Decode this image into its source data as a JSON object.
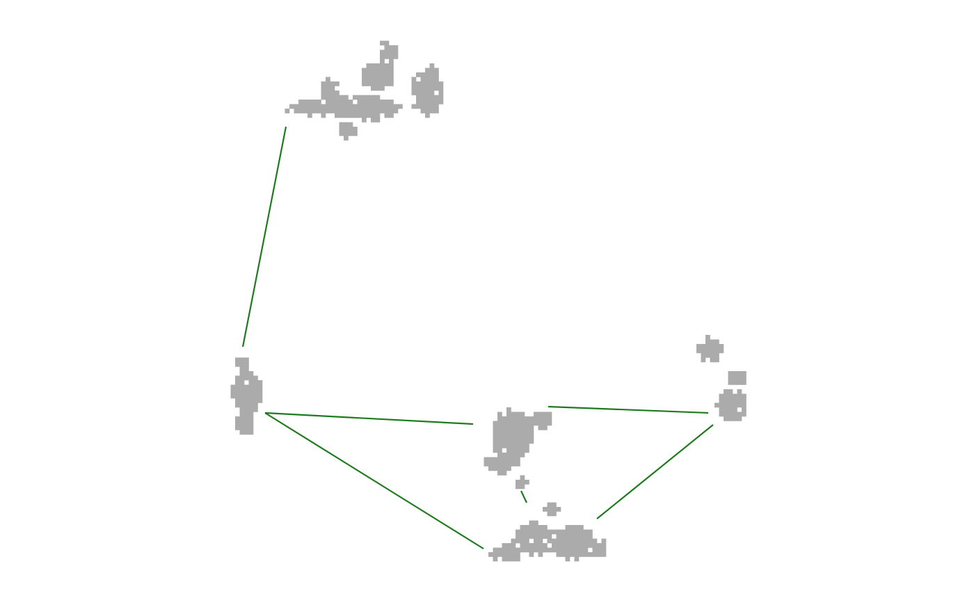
{
  "colors": {
    "background": "#ffffff",
    "cluster_fill": "#ababab",
    "edge": "#1e7a1e"
  },
  "clusters": [
    {
      "id": "top"
    },
    {
      "id": "left"
    },
    {
      "id": "center"
    },
    {
      "id": "right"
    },
    {
      "id": "bottom"
    }
  ],
  "edges": [
    {
      "from": "top",
      "to": "left"
    },
    {
      "from": "left",
      "to": "center"
    },
    {
      "from": "left",
      "to": "bottom"
    },
    {
      "from": "center",
      "to": "right"
    },
    {
      "from": "center",
      "to": "bottom"
    },
    {
      "from": "right",
      "to": "bottom"
    }
  ]
}
